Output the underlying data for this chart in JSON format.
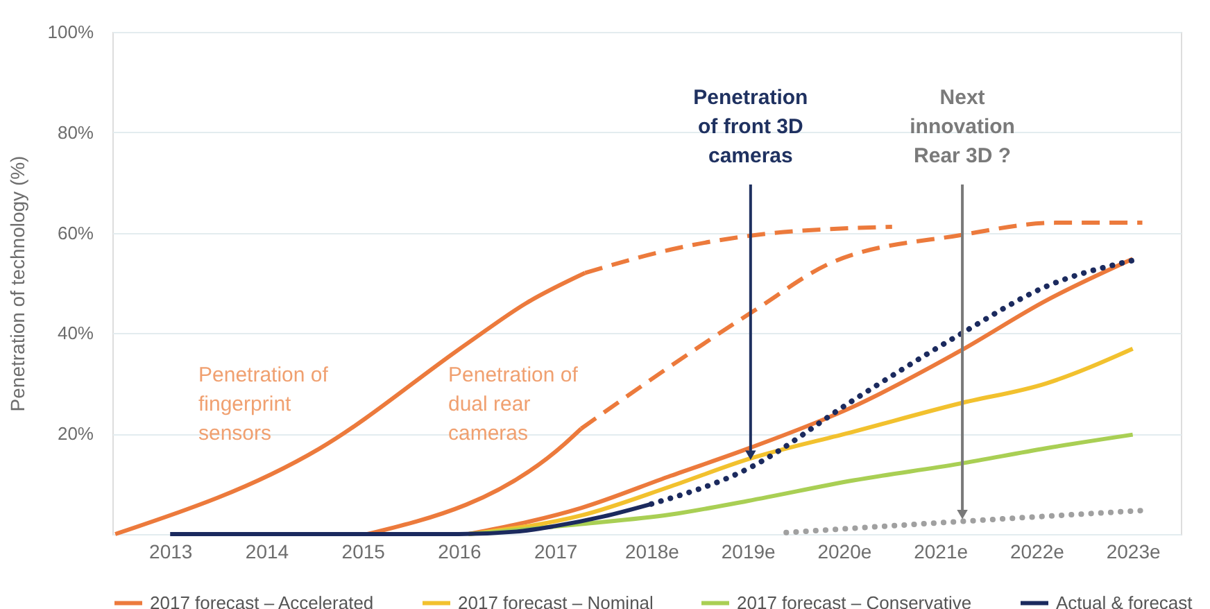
{
  "chart_data": {
    "type": "line",
    "ylabel": "Penetration of technology (%)",
    "xlim": [
      2012.4,
      2023.5
    ],
    "xticks": [
      2013,
      2014,
      2015,
      2016,
      2017,
      {
        "value": 2018,
        "label": "2018e"
      },
      {
        "value": 2019,
        "label": "2019e"
      },
      {
        "value": 2020,
        "label": "2020e"
      },
      {
        "value": 2021,
        "label": "2021e"
      },
      {
        "value": 2022,
        "label": "2022e"
      },
      {
        "value": 2023,
        "label": "2023e"
      }
    ],
    "ylim": [
      0,
      100
    ],
    "yticks": [
      {
        "value": 0,
        "label": null
      },
      {
        "value": 20,
        "label": "20%"
      },
      {
        "value": 40,
        "label": "40%"
      },
      {
        "value": 60,
        "label": "60%"
      },
      {
        "value": 80,
        "label": "80%"
      },
      {
        "value": 100,
        "label": "100%"
      }
    ],
    "grid": "y",
    "legend": "bottom",
    "marker": "none",
    "series": [
      {
        "color": "#ec7a3c",
        "line_style": "solid",
        "x": [
          2012.43,
          2014.55,
          2016.09,
          2016.7,
          2017.31
        ],
        "values": [
          0,
          17,
          38,
          46,
          52
        ]
      },
      {
        "color": "#ec7a3c",
        "line_style": "dashed",
        "x": [
          2017.31,
          2018.21,
          2019.06,
          2020.5
        ],
        "values": [
          52,
          56.7,
          59.5,
          61.2
        ]
      },
      {
        "color": "#ec7a3c",
        "line_style": "solid",
        "x": [
          2015.05,
          2017.1,
          2017.27
        ],
        "values": [
          0,
          18,
          21
        ]
      },
      {
        "color": "#ec7a3c",
        "line_style": "dashed",
        "x": [
          2017.27,
          2018.21,
          2019.06,
          2019.9,
          2021.2,
          2022.2,
          2023.1
        ],
        "values": [
          21,
          33.6,
          44.4,
          54.3,
          59.5,
          62,
          62
        ]
      },
      {
        "name": "2017 forecast – Accelerated",
        "color": "#ec7a3c",
        "line_style": "solid",
        "x": [
          2016.1,
          2017.27,
          2018.2,
          2019.0,
          2020.1,
          2021.2,
          2022.1,
          2023.0
        ],
        "values": [
          0,
          5.2,
          11.6,
          17,
          25.4,
          36.4,
          46.5,
          54.8
        ]
      },
      {
        "name": "2017 forecast – Nominal",
        "color": "#f2c12e",
        "line_style": "solid",
        "x": [
          2016.1,
          2017.27,
          2018.2,
          2019.0,
          2020.1,
          2021.2,
          2022.1,
          2023.0
        ],
        "values": [
          0,
          3.7,
          9.5,
          14.9,
          20.4,
          26,
          30,
          36.9
        ]
      },
      {
        "name": "2017 forecast – Conservative",
        "color": "#a9cf54",
        "line_style": "solid",
        "x": [
          2016.1,
          2017.27,
          2018.2,
          2019.0,
          2020.1,
          2021.2,
          2022.1,
          2023.0
        ],
        "values": [
          0,
          2,
          3.9,
          6.6,
          10.7,
          14,
          17.1,
          19.8
        ]
      },
      {
        "name": "Actual & forecast",
        "color": "#1b2a5e",
        "line_style": "solid",
        "x": [
          2013.0,
          2016.0,
          2016.6,
          2017.0,
          2017.5,
          2018.0
        ],
        "values": [
          0,
          0,
          0.5,
          1.6,
          3.5,
          6
        ]
      },
      {
        "color": "#1b2a5e",
        "line_style": "dotted",
        "x": [
          2018.0,
          2019.0,
          2020.1,
          2021.2,
          2022.1,
          2023.0
        ],
        "values": [
          6,
          13,
          26.7,
          39.7,
          49.3,
          54.5
        ]
      },
      {
        "color": "#a0a0a0",
        "line_style": "dotted",
        "x": [
          2019.4,
          2021.2,
          2023.1
        ],
        "values": [
          0.3,
          2.5,
          4.7
        ]
      }
    ],
    "annotations": [
      "Penetration of\nfingerprint\nsensors",
      "Penetration of\ndual rear\ncameras",
      {
        "text": "Penetration\nof front 3D\ncameras",
        "x": 2019.03,
        "y": 15.7
      },
      {
        "text": "Next\ninnovation\nRear 3D ?",
        "x": 2021.23,
        "y": 3.9
      }
    ]
  }
}
